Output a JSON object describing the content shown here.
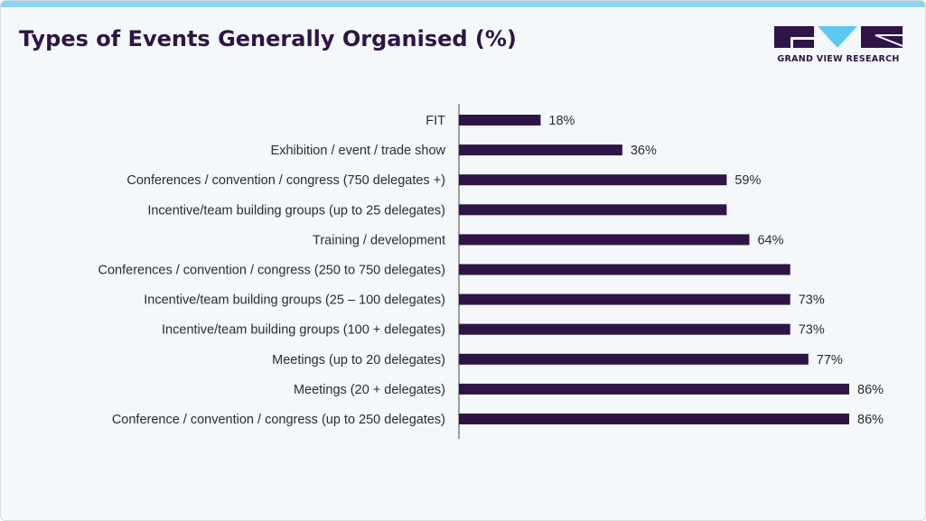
{
  "title": "Types of Events Generally Organised (%)",
  "brand": {
    "name": "GRAND VIEW RESEARCH",
    "bar_color": "#2e1447",
    "accent": "#5ec8f2"
  },
  "chart_data": {
    "type": "bar",
    "orientation": "horizontal",
    "title": "Types of Events Generally Organised (%)",
    "xlabel": "",
    "ylabel": "",
    "xlim": [
      0,
      100
    ],
    "grid": false,
    "categories": [
      "FIT",
      "Exhibition / event / trade show",
      "Conferences / convention / congress (750 delegates +)",
      "Incentive/team building groups (up to 25 delegates)",
      "Training / development",
      "Conferences / convention / congress (250 to 750 delegates)",
      "Incentive/team building groups (25 – 100 delegates)",
      "Incentive/team building groups (100 + delegates)",
      "Meetings (up to 20 delegates)",
      "Meetings (20 + delegates)",
      "Conference / convention / congress (up to 250 delegates)"
    ],
    "values": [
      18,
      36,
      59,
      59,
      64,
      73,
      73,
      73,
      77,
      86,
      86
    ],
    "data_labels": [
      "18%",
      "36%",
      "59%",
      "",
      "64%",
      "",
      "73%",
      "73%",
      "77%",
      "86%",
      "86%"
    ]
  }
}
